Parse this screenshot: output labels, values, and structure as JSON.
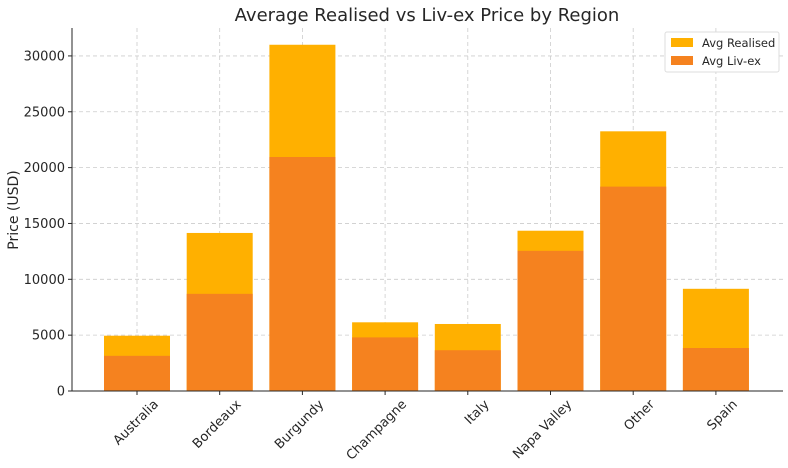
{
  "chart_data": {
    "type": "bar",
    "title": "Average Realised vs Liv-ex Price by Region",
    "xlabel": "",
    "ylabel": "Price (USD)",
    "categories": [
      "Australia",
      "Bordeaux",
      "Burgundy",
      "Champagne",
      "Italy",
      "Napa Valley",
      "Other",
      "Spain"
    ],
    "series": [
      {
        "name": "Avg Realised",
        "color": "#ffb000",
        "values": [
          4950,
          14150,
          31000,
          6150,
          6000,
          14350,
          23250,
          9150
        ]
      },
      {
        "name": "Avg Liv-ex",
        "color": "#f5821f",
        "values": [
          3150,
          8700,
          20950,
          4800,
          3650,
          12550,
          18300,
          3850
        ]
      }
    ],
    "ylim": [
      0,
      32500
    ],
    "yticks": [
      0,
      5000,
      10000,
      15000,
      20000,
      25000,
      30000
    ],
    "grid": true,
    "legend": "top-right",
    "bar_layout": "overlaid"
  }
}
